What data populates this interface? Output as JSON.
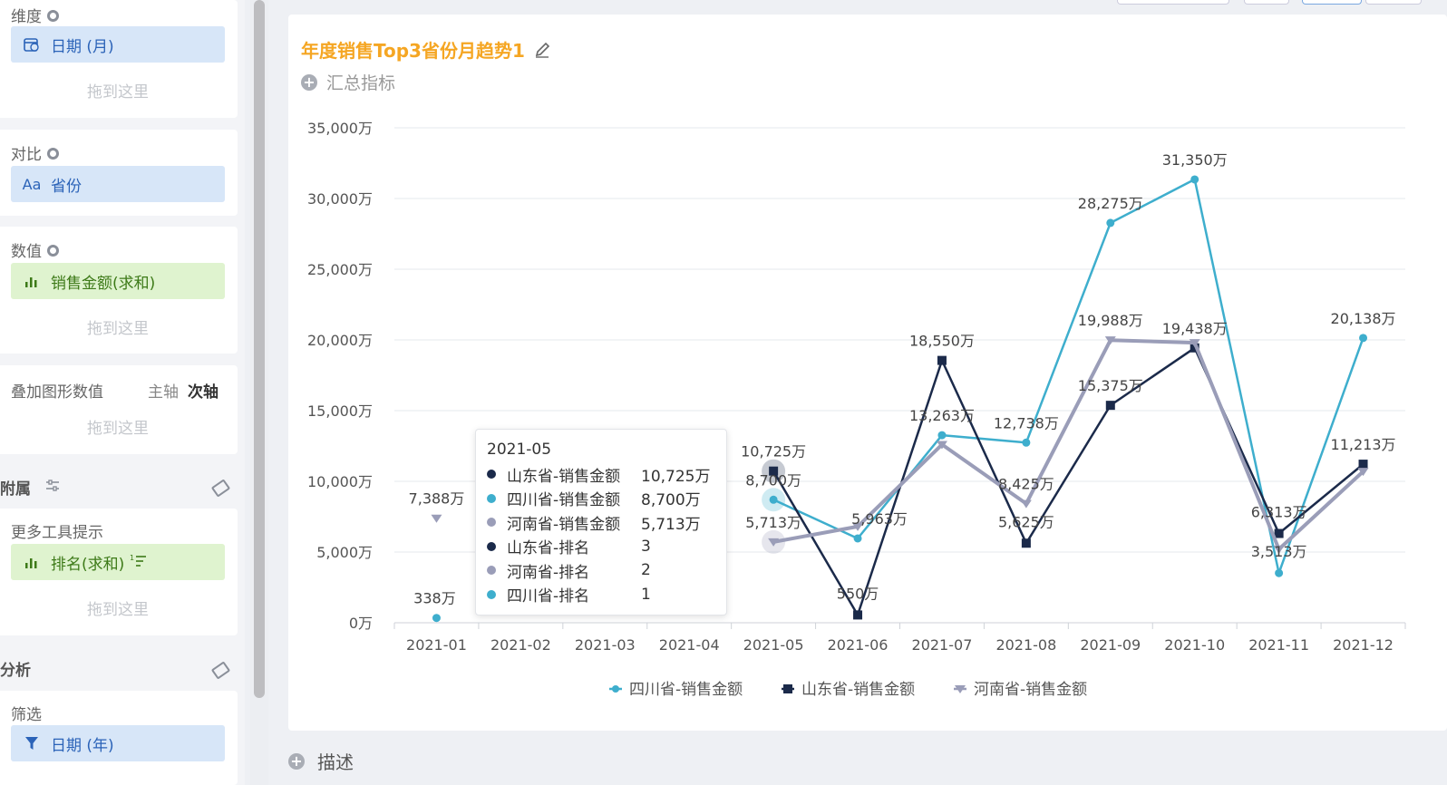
{
  "left_panel": {
    "dimension": {
      "title": "维度",
      "field": "日期 (月)",
      "drop_hint": "拖到这里"
    },
    "compare": {
      "title": "对比",
      "field": "省份",
      "field_icon": "Aa"
    },
    "values": {
      "title": "数值",
      "field": "销售金额(求和)",
      "drop_hint": "拖到这里"
    },
    "overlay": {
      "title": "叠加图形数值",
      "primary_axis": "主轴",
      "secondary_axis": "次轴",
      "drop_hint": "拖到这里"
    },
    "attachment": {
      "title": "附属"
    },
    "tooltip_more": {
      "title": "更多工具提示",
      "field": "排名(求和)",
      "drop_hint": "拖到这里"
    },
    "analysis": {
      "title": "分析"
    },
    "filter": {
      "title": "筛选",
      "field": "日期 (年)"
    }
  },
  "chart_card": {
    "title": "年度销售Top3省份月趋势1",
    "summary_label": "汇总指标",
    "description_label": "描述"
  },
  "tooltip": {
    "title": "2021-05",
    "rows": [
      {
        "name": "山东省-销售金额",
        "value": "10,725万",
        "color": "#1b2a4a"
      },
      {
        "name": "四川省-销售金额",
        "value": "8,700万",
        "color": "#3eaecd"
      },
      {
        "name": "河南省-销售金额",
        "value": "5,713万",
        "color": "#9a9db8"
      },
      {
        "name": "山东省-排名",
        "value": "3",
        "color": "#1b2a4a"
      },
      {
        "name": "河南省-排名",
        "value": "2",
        "color": "#9a9db8"
      },
      {
        "name": "四川省-排名",
        "value": "1",
        "color": "#3eaecd"
      }
    ]
  },
  "chart_data": {
    "type": "line",
    "categories": [
      "2021-01",
      "2021-02",
      "2021-03",
      "2021-04",
      "2021-05",
      "2021-06",
      "2021-07",
      "2021-08",
      "2021-09",
      "2021-10",
      "2021-11",
      "2021-12"
    ],
    "yticks": [
      "0万",
      "5,000万",
      "10,000万",
      "15,000万",
      "20,000万",
      "25,000万",
      "30,000万",
      "35,000万"
    ],
    "ylim": [
      0,
      35000
    ],
    "unit": "万",
    "grid": true,
    "legend_position": "bottom",
    "series": [
      {
        "name": "四川省-销售金额",
        "color": "#3eaecd",
        "marker": "circle",
        "values": [
          338,
          null,
          null,
          null,
          8700,
          5963,
          13263,
          12738,
          28275,
          31350,
          3513,
          20138
        ],
        "labels": [
          "338万",
          "",
          "",
          "",
          "8,700万",
          "5,963万",
          "13,263万",
          "12,738万",
          "28,275万",
          "31,350万",
          "3,513万",
          "20,138万"
        ]
      },
      {
        "name": "山东省-销售金额",
        "color": "#1b2a4a",
        "marker": "square",
        "values": [
          null,
          null,
          null,
          null,
          10725,
          550,
          18550,
          5625,
          15375,
          19438,
          6313,
          11213
        ],
        "labels": [
          "",
          "",
          "",
          "",
          "10,725万",
          "550万",
          "18,550万",
          "5,625万",
          "15,375万",
          "19,438万",
          "6,313万",
          "11,213万"
        ]
      },
      {
        "name": "河南省-销售金额",
        "color": "#9a9db8",
        "marker": "triangle",
        "values": [
          7388,
          null,
          null,
          null,
          5713,
          6800,
          12600,
          8425,
          19988,
          19800,
          5200,
          10700
        ],
        "labels": [
          "7,388万",
          "",
          "",
          "",
          "5,713万",
          "",
          "",
          "8,425万",
          "19,988万",
          "",
          "",
          ""
        ]
      }
    ]
  }
}
